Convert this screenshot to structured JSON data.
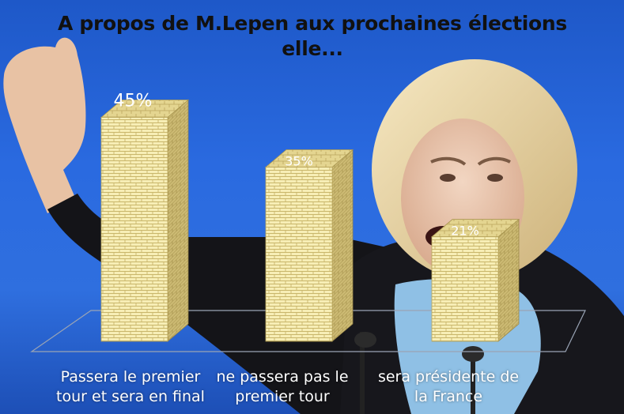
{
  "chart_data": {
    "type": "bar",
    "title_lines": [
      "A propos de M.Lepen aux prochaines élections",
      "elle..."
    ],
    "categories": [
      [
        "Passera le premier",
        "tour et sera en final"
      ],
      [
        "ne passera pas le",
        "premier tour"
      ],
      [
        "sera présidente de",
        "la France"
      ]
    ],
    "values": [
      45,
      35,
      21
    ],
    "value_labels": [
      "45%",
      "35%",
      "21%"
    ],
    "ylim": [
      0,
      50
    ],
    "grid": false,
    "legend": "none",
    "style": "3d-column",
    "colors": {
      "bar_front": "#f6ecb0",
      "bar_brick": "#c9b66a",
      "bar_side": "#c7b46c",
      "bar_top": "#e2d28c",
      "background": "#2a66d8"
    }
  },
  "background": {
    "description_icon": "speaker-photo",
    "colors": {
      "jacket": "#15151a",
      "scarf": "#8fc1e6",
      "hair": "#e9d7a8",
      "skin": "#e9c7ad"
    }
  }
}
